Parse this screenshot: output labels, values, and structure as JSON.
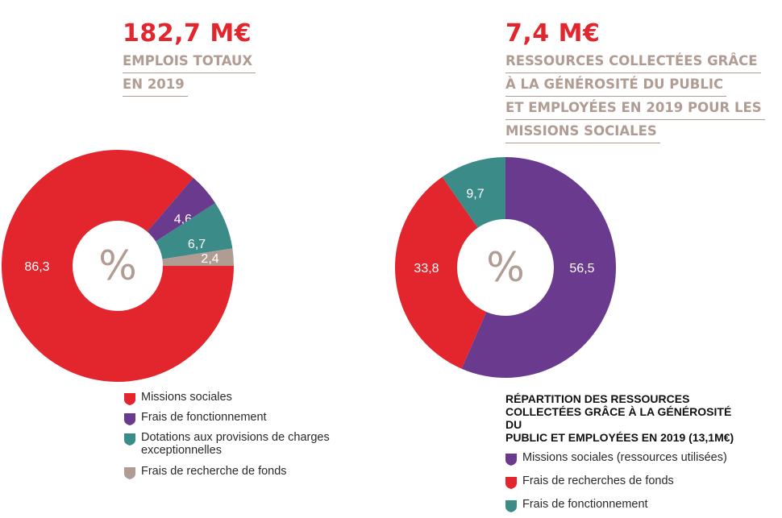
{
  "left": {
    "headline": "182,7 M€",
    "subtitle_lines": [
      "EMPLOIS TOTAUX",
      "EN 2019"
    ]
  },
  "right": {
    "headline": "7,4 M€",
    "subtitle_lines": [
      "RESSOURCES COLLECTÉES GRÂCE",
      "À LA GÉNÉROSITÉ DU PUBLIC",
      "ET EMPLOYÉES EN 2019 POUR LES",
      "MISSIONS SOCIALES"
    ],
    "legend_title_lines": [
      "RÉPARTITION DES RESSOURCES",
      "COLLECTÉES GRÂCE À LA GÉNÉROSITÉ DU",
      "PUBLIC ET EMPLOYÉES EN 2019 (13,1M€)"
    ]
  },
  "colors": {
    "red": "#e3262e",
    "purple": "#6a3a8e",
    "teal": "#3b8b89",
    "taupe": "#b19c93"
  },
  "chart_data": [
    {
      "type": "pie",
      "center_label": "%",
      "slices": [
        {
          "label": "Missions sociales",
          "value": 86.3,
          "display": "86,3",
          "color": "#e3262e"
        },
        {
          "label": "Frais de fonctionnement",
          "value": 4.6,
          "display": "4,6",
          "color": "#6a3a8e"
        },
        {
          "label": "Dotations aux provisions de charges exceptionnelles",
          "value": 6.7,
          "display": "6,7",
          "color": "#3b8b89"
        },
        {
          "label": "Frais de recherche de fonds",
          "value": 2.4,
          "display": "2,4",
          "color": "#b19c93"
        }
      ]
    },
    {
      "type": "pie",
      "center_label": "%",
      "slices": [
        {
          "label": "Missions sociales (ressources utilisées)",
          "value": 56.5,
          "display": "56,5",
          "color": "#6a3a8e"
        },
        {
          "label": "Frais de recherches de fonds",
          "value": 33.8,
          "display": "33,8",
          "color": "#e3262e"
        },
        {
          "label": "Frais de fonctionnement",
          "value": 9.7,
          "display": "9,7",
          "color": "#3b8b89"
        }
      ]
    }
  ]
}
